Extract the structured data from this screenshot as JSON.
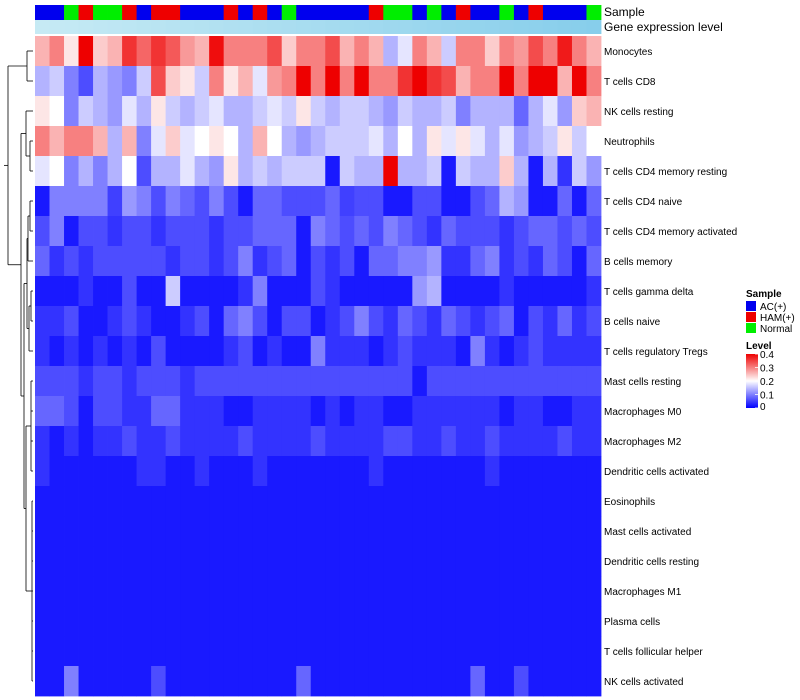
{
  "chart_data": {
    "type": "heatmap",
    "title": "",
    "annotation_labels": {
      "sample": "Sample",
      "gene_expression": "Gene expression level"
    },
    "row_labels": [
      "Monocytes",
      "T cells CD8",
      "NK cells resting",
      "Neutrophils",
      "T cells CD4 memory resting",
      "T cells CD4 naive",
      "T cells CD4 memory activated",
      "B cells memory",
      "T cells gamma delta",
      "B cells naive",
      "T cells regulatory  Tregs",
      "Mast cells resting",
      "Macrophages M0",
      "Macrophages M2",
      "Dendritic cells activated",
      "Eosinophils",
      "Mast cells activated",
      "Dendritic cells resting",
      "Macrophages M1",
      "Plasma cells",
      "T cells follicular helper",
      "NK cells activated"
    ],
    "sample_groups": [
      "AC(+)",
      "AC(+)",
      "Normal",
      "HAM(+)",
      "Normal",
      "Normal",
      "HAM(+)",
      "AC(+)",
      "HAM(+)",
      "HAM(+)",
      "AC(+)",
      "AC(+)",
      "AC(+)",
      "HAM(+)",
      "AC(+)",
      "HAM(+)",
      "AC(+)",
      "Normal",
      "AC(+)",
      "AC(+)",
      "AC(+)",
      "AC(+)",
      "AC(+)",
      "HAM(+)",
      "Normal",
      "Normal",
      "AC(+)",
      "Normal",
      "AC(+)",
      "HAM(+)",
      "AC(+)",
      "AC(+)",
      "Normal",
      "AC(+)",
      "HAM(+)",
      "AC(+)",
      "AC(+)",
      "AC(+)",
      "Normal"
    ],
    "legend": {
      "sample": {
        "title": "Sample",
        "entries": [
          {
            "label": "AC(+)",
            "color": "#0000ee"
          },
          {
            "label": "HAM(+)",
            "color": "#ee0000"
          },
          {
            "label": "Normal",
            "color": "#00ee00"
          }
        ]
      },
      "level": {
        "title": "Level",
        "ticks": [
          {
            "value": 0.4,
            "label": "0.4"
          },
          {
            "value": 0.3,
            "label": "0.3"
          },
          {
            "value": 0.2,
            "label": "0.2"
          },
          {
            "value": 0.1,
            "label": "0.1"
          },
          {
            "value": 0,
            "label": "0"
          }
        ]
      },
      "placement": "right"
    },
    "color_scale": {
      "min": 0,
      "mid": 0.2,
      "max": 0.4,
      "low": "#0000ff",
      "midcolor": "#ffffff",
      "high": "#ee0000"
    },
    "annotation_colors": {
      "AC(+)": "#0000ee",
      "HAM(+)": "#ee0000",
      "Normal": "#00ee00",
      "gene_expression": "#87ceeb",
      "gene_expression_light": "#c6eaf4"
    },
    "matrix": [
      [
        0.26,
        0.3,
        0.22,
        0.4,
        0.24,
        0.26,
        0.36,
        0.32,
        0.36,
        0.33,
        0.28,
        0.26,
        0.39,
        0.3,
        0.3,
        0.3,
        0.34,
        0.24,
        0.3,
        0.3,
        0.34,
        0.26,
        0.3,
        0.26,
        0.14,
        0.18,
        0.3,
        0.26,
        0.16,
        0.3,
        0.3,
        0.24,
        0.3,
        0.28,
        0.34,
        0.3,
        0.38,
        0.3,
        0.26
      ],
      [
        0.14,
        0.16,
        0.1,
        0.06,
        0.14,
        0.12,
        0.1,
        0.16,
        0.34,
        0.24,
        0.22,
        0.16,
        0.3,
        0.22,
        0.26,
        0.18,
        0.28,
        0.3,
        0.4,
        0.3,
        0.4,
        0.3,
        0.4,
        0.3,
        0.3,
        0.36,
        0.4,
        0.36,
        0.34,
        0.26,
        0.3,
        0.3,
        0.4,
        0.3,
        0.4,
        0.4,
        0.26,
        0.4,
        0.3
      ],
      [
        0.22,
        0.2,
        0.1,
        0.16,
        0.14,
        0.12,
        0.18,
        0.14,
        0.22,
        0.16,
        0.14,
        0.16,
        0.18,
        0.14,
        0.14,
        0.16,
        0.18,
        0.16,
        0.22,
        0.16,
        0.14,
        0.16,
        0.16,
        0.14,
        0.12,
        0.16,
        0.14,
        0.14,
        0.16,
        0.1,
        0.14,
        0.14,
        0.14,
        0.08,
        0.14,
        0.18,
        0.12,
        0.24,
        0.26
      ],
      [
        0.3,
        0.26,
        0.3,
        0.3,
        0.26,
        0.14,
        0.26,
        0.1,
        0.18,
        0.24,
        0.18,
        0.2,
        0.22,
        0.2,
        0.14,
        0.26,
        0.2,
        0.14,
        0.12,
        0.14,
        0.16,
        0.16,
        0.16,
        0.18,
        0.14,
        0.2,
        0.14,
        0.22,
        0.18,
        0.22,
        0.18,
        0.14,
        0.18,
        0.12,
        0.14,
        0.16,
        0.22,
        0.16,
        0.2
      ],
      [
        0.18,
        0.2,
        0.1,
        0.14,
        0.1,
        0.14,
        0.2,
        0.06,
        0.14,
        0.14,
        0.18,
        0.14,
        0.12,
        0.22,
        0.14,
        0.16,
        0.14,
        0.16,
        0.16,
        0.16,
        0.02,
        0.16,
        0.14,
        0.14,
        0.4,
        0.14,
        0.14,
        0.16,
        0.02,
        0.16,
        0.14,
        0.14,
        0.24,
        0.14,
        0.02,
        0.14,
        0.04,
        0.16,
        0.12
      ],
      [
        0.02,
        0.1,
        0.1,
        0.1,
        0.1,
        0.05,
        0.12,
        0.1,
        0.06,
        0.1,
        0.08,
        0.06,
        0.1,
        0.06,
        0.02,
        0.08,
        0.08,
        0.06,
        0.06,
        0.06,
        0.08,
        0.05,
        0.06,
        0.06,
        0.02,
        0.02,
        0.06,
        0.06,
        0.02,
        0.02,
        0.06,
        0.08,
        0.14,
        0.12,
        0.02,
        0.02,
        0.08,
        0.02,
        0.08
      ],
      [
        0.06,
        0.1,
        0.02,
        0.06,
        0.06,
        0.04,
        0.06,
        0.06,
        0.04,
        0.06,
        0.06,
        0.06,
        0.04,
        0.06,
        0.06,
        0.08,
        0.08,
        0.08,
        0.02,
        0.1,
        0.08,
        0.06,
        0.08,
        0.06,
        0.1,
        0.08,
        0.06,
        0.04,
        0.08,
        0.06,
        0.06,
        0.06,
        0.04,
        0.06,
        0.08,
        0.08,
        0.06,
        0.08,
        0.06
      ],
      [
        0.08,
        0.04,
        0.06,
        0.04,
        0.06,
        0.06,
        0.06,
        0.06,
        0.06,
        0.04,
        0.06,
        0.06,
        0.04,
        0.06,
        0.1,
        0.04,
        0.06,
        0.08,
        0.02,
        0.06,
        0.04,
        0.06,
        0.02,
        0.08,
        0.08,
        0.1,
        0.1,
        0.12,
        0.04,
        0.04,
        0.08,
        0.1,
        0.04,
        0.06,
        0.04,
        0.08,
        0.06,
        0.02,
        0.08
      ],
      [
        0.02,
        0.02,
        0.02,
        0.04,
        0.02,
        0.02,
        0.06,
        0.02,
        0.02,
        0.16,
        0.02,
        0.02,
        0.02,
        0.02,
        0.04,
        0.1,
        0.02,
        0.02,
        0.02,
        0.06,
        0.04,
        0.02,
        0.02,
        0.02,
        0.02,
        0.02,
        0.12,
        0.14,
        0.02,
        0.02,
        0.02,
        0.02,
        0.04,
        0.02,
        0.02,
        0.02,
        0.02,
        0.02,
        0.04
      ],
      [
        0.04,
        0.04,
        0.06,
        0.02,
        0.02,
        0.04,
        0.06,
        0.04,
        0.02,
        0.02,
        0.04,
        0.06,
        0.02,
        0.08,
        0.1,
        0.06,
        0.02,
        0.06,
        0.06,
        0.02,
        0.04,
        0.06,
        0.1,
        0.06,
        0.04,
        0.08,
        0.06,
        0.04,
        0.08,
        0.06,
        0.04,
        0.06,
        0.08,
        0.02,
        0.06,
        0.04,
        0.08,
        0.04,
        0.06
      ],
      [
        0.04,
        0.02,
        0.04,
        0.02,
        0.04,
        0.02,
        0.04,
        0.02,
        0.06,
        0.02,
        0.02,
        0.02,
        0.02,
        0.04,
        0.06,
        0.02,
        0.04,
        0.02,
        0.02,
        0.1,
        0.04,
        0.04,
        0.04,
        0.02,
        0.04,
        0.06,
        0.04,
        0.04,
        0.04,
        0.02,
        0.1,
        0.04,
        0.02,
        0.04,
        0.06,
        0.04,
        0.04,
        0.04,
        0.04
      ],
      [
        0.06,
        0.06,
        0.06,
        0.04,
        0.06,
        0.06,
        0.04,
        0.06,
        0.06,
        0.06,
        0.04,
        0.06,
        0.06,
        0.06,
        0.06,
        0.06,
        0.06,
        0.06,
        0.06,
        0.06,
        0.06,
        0.06,
        0.06,
        0.06,
        0.06,
        0.06,
        0.02,
        0.06,
        0.06,
        0.06,
        0.06,
        0.06,
        0.06,
        0.06,
        0.06,
        0.06,
        0.06,
        0.06,
        0.06
      ],
      [
        0.08,
        0.08,
        0.06,
        0.02,
        0.06,
        0.06,
        0.04,
        0.04,
        0.08,
        0.08,
        0.04,
        0.04,
        0.04,
        0.02,
        0.02,
        0.04,
        0.04,
        0.04,
        0.04,
        0.02,
        0.04,
        0.02,
        0.04,
        0.04,
        0.02,
        0.02,
        0.04,
        0.04,
        0.04,
        0.04,
        0.04,
        0.04,
        0.02,
        0.04,
        0.04,
        0.02,
        0.02,
        0.04,
        0.04
      ],
      [
        0.04,
        0.02,
        0.04,
        0.02,
        0.04,
        0.04,
        0.06,
        0.04,
        0.04,
        0.06,
        0.04,
        0.04,
        0.04,
        0.04,
        0.06,
        0.04,
        0.04,
        0.04,
        0.04,
        0.06,
        0.04,
        0.04,
        0.04,
        0.04,
        0.06,
        0.06,
        0.04,
        0.04,
        0.06,
        0.04,
        0.04,
        0.06,
        0.04,
        0.04,
        0.04,
        0.04,
        0.06,
        0.04,
        0.04
      ],
      [
        0.04,
        0.02,
        0.02,
        0.02,
        0.02,
        0.02,
        0.02,
        0.04,
        0.04,
        0.02,
        0.02,
        0.04,
        0.02,
        0.02,
        0.02,
        0.04,
        0.02,
        0.02,
        0.02,
        0.02,
        0.02,
        0.02,
        0.02,
        0.04,
        0.02,
        0.02,
        0.02,
        0.02,
        0.02,
        0.02,
        0.02,
        0.04,
        0.02,
        0.02,
        0.02,
        0.02,
        0.02,
        0.02,
        0.02
      ],
      [
        0.02,
        0.02,
        0.02,
        0.02,
        0.02,
        0.02,
        0.02,
        0.02,
        0.02,
        0.02,
        0.02,
        0.02,
        0.02,
        0.02,
        0.02,
        0.02,
        0.02,
        0.02,
        0.02,
        0.02,
        0.02,
        0.02,
        0.02,
        0.02,
        0.02,
        0.02,
        0.02,
        0.02,
        0.02,
        0.02,
        0.02,
        0.02,
        0.02,
        0.02,
        0.02,
        0.02,
        0.02,
        0.02,
        0.02
      ],
      [
        0.02,
        0.02,
        0.02,
        0.02,
        0.02,
        0.02,
        0.02,
        0.02,
        0.02,
        0.02,
        0.02,
        0.02,
        0.02,
        0.02,
        0.02,
        0.02,
        0.02,
        0.02,
        0.02,
        0.02,
        0.02,
        0.02,
        0.02,
        0.02,
        0.02,
        0.02,
        0.02,
        0.02,
        0.02,
        0.02,
        0.02,
        0.02,
        0.02,
        0.02,
        0.02,
        0.02,
        0.02,
        0.02,
        0.02
      ],
      [
        0.02,
        0.02,
        0.02,
        0.02,
        0.02,
        0.02,
        0.02,
        0.02,
        0.02,
        0.02,
        0.02,
        0.02,
        0.02,
        0.02,
        0.02,
        0.02,
        0.02,
        0.02,
        0.02,
        0.02,
        0.02,
        0.02,
        0.02,
        0.02,
        0.02,
        0.02,
        0.02,
        0.02,
        0.02,
        0.02,
        0.02,
        0.02,
        0.02,
        0.02,
        0.02,
        0.02,
        0.02,
        0.02,
        0.02
      ],
      [
        0.02,
        0.02,
        0.02,
        0.02,
        0.02,
        0.02,
        0.02,
        0.02,
        0.02,
        0.02,
        0.02,
        0.02,
        0.02,
        0.02,
        0.02,
        0.02,
        0.02,
        0.02,
        0.02,
        0.02,
        0.02,
        0.02,
        0.02,
        0.02,
        0.02,
        0.02,
        0.02,
        0.02,
        0.02,
        0.02,
        0.02,
        0.02,
        0.02,
        0.02,
        0.02,
        0.02,
        0.02,
        0.02,
        0.02
      ],
      [
        0.02,
        0.02,
        0.02,
        0.02,
        0.02,
        0.02,
        0.02,
        0.02,
        0.02,
        0.02,
        0.02,
        0.02,
        0.02,
        0.02,
        0.02,
        0.02,
        0.02,
        0.02,
        0.02,
        0.02,
        0.02,
        0.02,
        0.02,
        0.02,
        0.02,
        0.02,
        0.02,
        0.02,
        0.02,
        0.02,
        0.02,
        0.02,
        0.02,
        0.02,
        0.02,
        0.02,
        0.02,
        0.02,
        0.02
      ],
      [
        0.02,
        0.02,
        0.02,
        0.02,
        0.02,
        0.02,
        0.02,
        0.02,
        0.02,
        0.02,
        0.02,
        0.02,
        0.02,
        0.02,
        0.02,
        0.02,
        0.02,
        0.02,
        0.02,
        0.02,
        0.02,
        0.02,
        0.02,
        0.02,
        0.02,
        0.02,
        0.02,
        0.02,
        0.02,
        0.02,
        0.02,
        0.02,
        0.02,
        0.02,
        0.02,
        0.02,
        0.02,
        0.02,
        0.02
      ],
      [
        0.02,
        0.02,
        0.1,
        0.02,
        0.02,
        0.02,
        0.02,
        0.02,
        0.06,
        0.02,
        0.02,
        0.02,
        0.02,
        0.02,
        0.02,
        0.02,
        0.02,
        0.02,
        0.08,
        0.02,
        0.02,
        0.02,
        0.02,
        0.02,
        0.02,
        0.02,
        0.02,
        0.02,
        0.02,
        0.02,
        0.08,
        0.02,
        0.02,
        0.06,
        0.02,
        0.02,
        0.02,
        0.02,
        0.02
      ]
    ]
  }
}
